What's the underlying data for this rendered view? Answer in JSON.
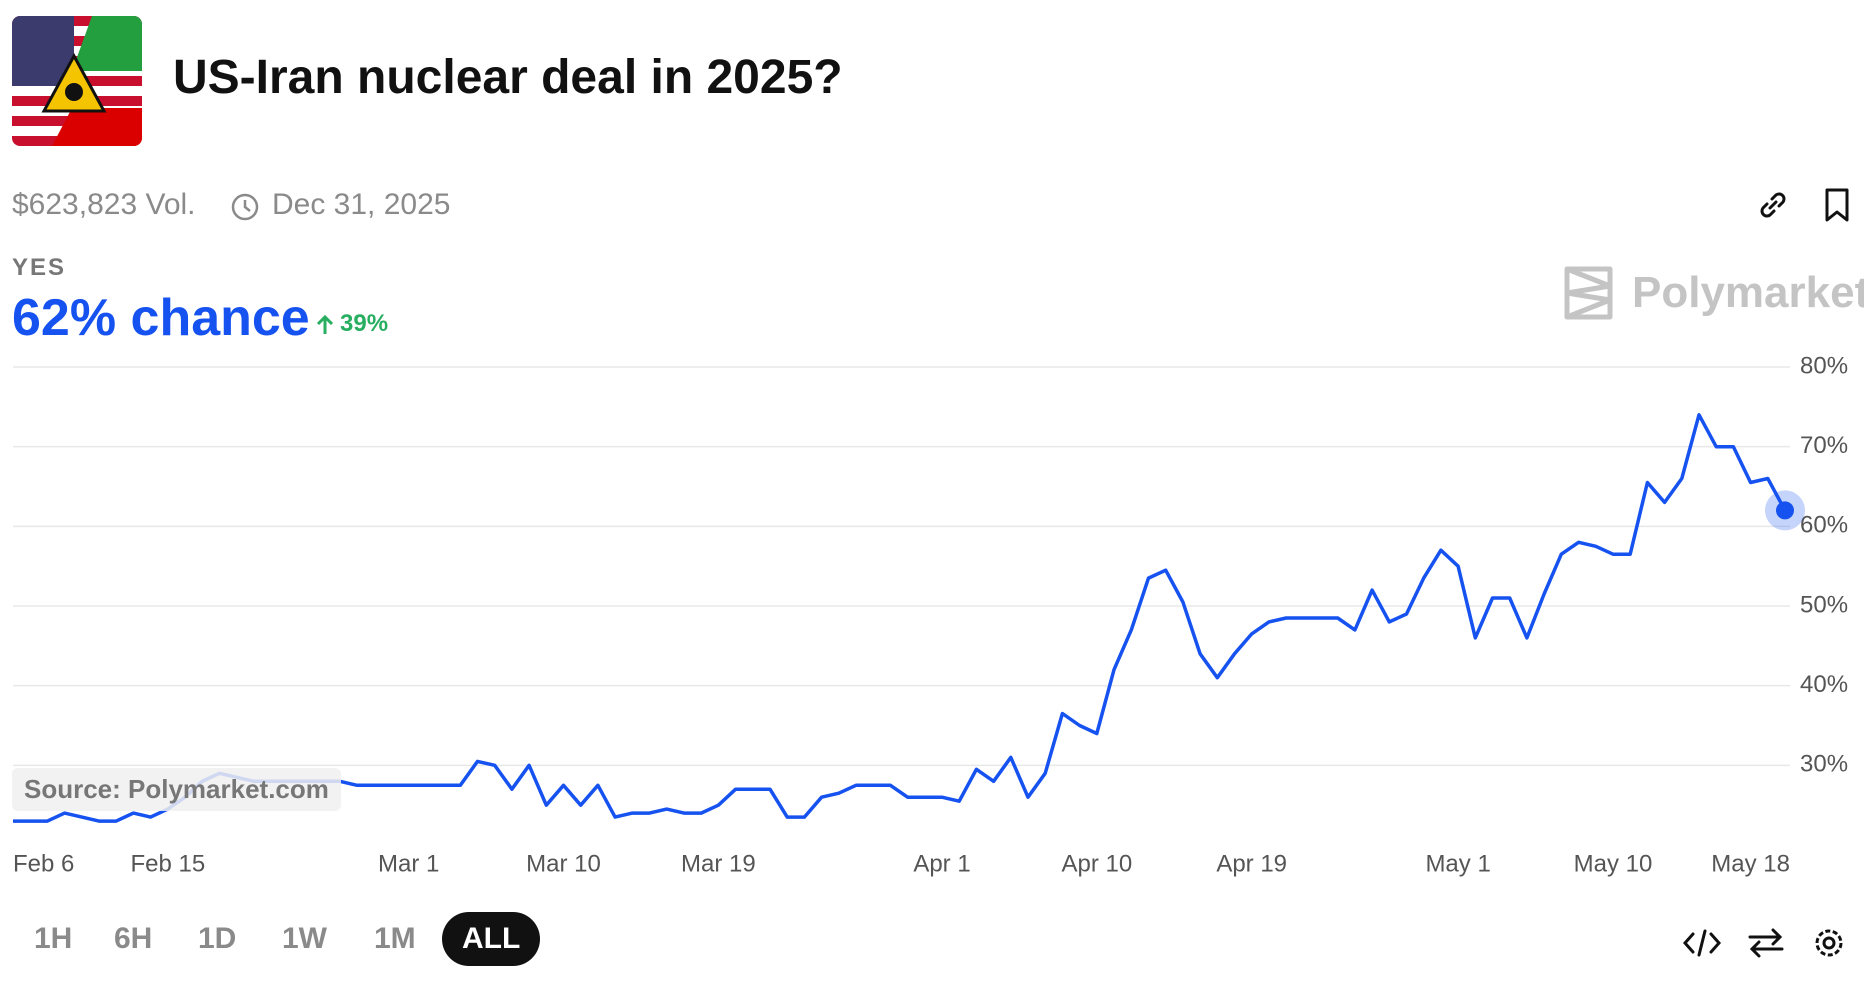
{
  "header": {
    "title": "US-Iran nuclear deal in 2025?",
    "volume": "$623,823 Vol.",
    "end_date": "Dec 31, 2025",
    "outcome": "YES",
    "chance": "62% chance",
    "change": "39%",
    "brand": "Polymarket"
  },
  "controls": {
    "ranges": [
      "1H",
      "6H",
      "1D",
      "1W",
      "1M",
      "ALL"
    ]
  },
  "chart_data": {
    "type": "line",
    "source": "Source: Polymarket.com",
    "color": "#1652f0",
    "x": [
      "Feb 6",
      "Feb 7",
      "Feb 8",
      "Feb 9",
      "Feb 10",
      "Feb 11",
      "Feb 12",
      "Feb 13",
      "Feb 14",
      "Feb 15",
      "Feb 16",
      "Feb 17",
      "Feb 18",
      "Feb 19",
      "Feb 20",
      "Feb 21",
      "Feb 22",
      "Feb 23",
      "Feb 24",
      "Feb 25",
      "Feb 26",
      "Feb 27",
      "Feb 28",
      "Mar 1",
      "Mar 2",
      "Mar 3",
      "Mar 4",
      "Mar 5",
      "Mar 6",
      "Mar 7",
      "Mar 8",
      "Mar 9",
      "Mar 10",
      "Mar 11",
      "Mar 12",
      "Mar 13",
      "Mar 14",
      "Mar 15",
      "Mar 16",
      "Mar 17",
      "Mar 18",
      "Mar 19",
      "Mar 20",
      "Mar 21",
      "Mar 22",
      "Mar 23",
      "Mar 24",
      "Mar 25",
      "Mar 26",
      "Mar 27",
      "Mar 28",
      "Mar 29",
      "Mar 30",
      "Mar 31",
      "Apr 1",
      "Apr 2",
      "Apr 3",
      "Apr 4",
      "Apr 5",
      "Apr 6",
      "Apr 7",
      "Apr 8",
      "Apr 9",
      "Apr 10",
      "Apr 11",
      "Apr 12",
      "Apr 13",
      "Apr 14",
      "Apr 15",
      "Apr 16",
      "Apr 17",
      "Apr 18",
      "Apr 19",
      "Apr 20",
      "Apr 21",
      "Apr 22",
      "Apr 23",
      "Apr 24",
      "Apr 25",
      "Apr 26",
      "Apr 27",
      "Apr 28",
      "Apr 29",
      "Apr 30",
      "May 1",
      "May 2",
      "May 3",
      "May 4",
      "May 5",
      "May 6",
      "May 7",
      "May 8",
      "May 9",
      "May 10",
      "May 11",
      "May 12",
      "May 13",
      "May 14",
      "May 15",
      "May 16",
      "May 17",
      "May 18",
      "May 19",
      "May 20"
    ],
    "values": [
      23,
      23,
      23,
      24,
      23.5,
      23,
      23,
      24,
      23.5,
      24.5,
      26,
      28,
      29,
      28.5,
      28,
      28,
      28,
      28,
      28,
      28,
      27.5,
      27.5,
      27.5,
      27.5,
      27.5,
      27.5,
      27.5,
      30.5,
      30,
      27,
      30,
      25,
      27.5,
      25,
      27.5,
      23.5,
      24,
      24,
      24.5,
      24,
      24,
      25,
      27,
      27,
      27,
      23.5,
      23.5,
      26,
      26.5,
      27.5,
      27.5,
      27.5,
      26,
      26,
      26,
      25.5,
      29.5,
      28,
      31,
      26,
      29,
      36.5,
      35,
      34,
      42,
      47,
      53.5,
      54.5,
      50.5,
      44,
      41,
      44,
      46.5,
      48,
      48.5,
      48.5,
      48.5,
      48.5,
      47,
      52,
      48,
      49,
      53.5,
      57,
      55,
      46,
      51,
      51,
      46,
      51.5,
      56.5,
      58,
      57.5,
      56.5,
      56.5,
      65.5,
      63,
      66,
      74,
      70,
      70,
      65.5,
      66,
      62
    ],
    "xticks": [
      "Feb 6",
      "Feb 15",
      "Mar 1",
      "Mar 10",
      "Mar 19",
      "Apr 1",
      "Apr 10",
      "Apr 19",
      "May 1",
      "May 10",
      "May 18"
    ],
    "ylim": [
      20,
      80
    ],
    "yticks": [
      {
        "value": 30,
        "label": "30%"
      },
      {
        "value": 40,
        "label": "40%"
      },
      {
        "value": 50,
        "label": "50%"
      },
      {
        "value": 60,
        "label": "60%"
      },
      {
        "value": 70,
        "label": "70%"
      },
      {
        "value": 80,
        "label": "80%"
      }
    ],
    "grid": true
  }
}
